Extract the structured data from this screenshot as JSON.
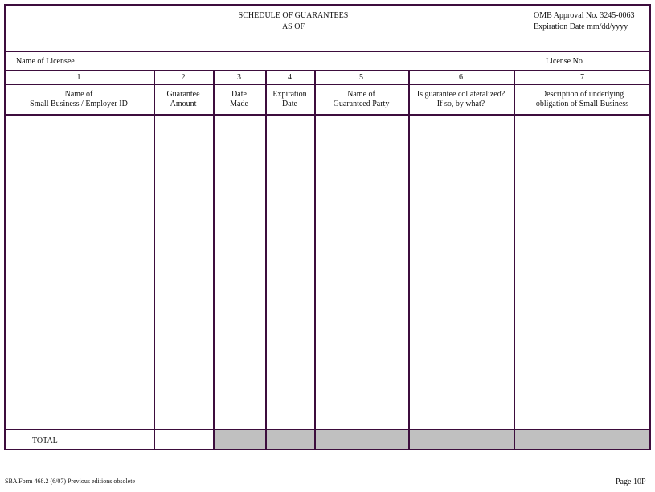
{
  "header": {
    "title": "SCHEDULE OF GUARANTEES",
    "subtitle": "AS OF",
    "omb": "OMB Approval No. 3245-0063",
    "expiration": "Expiration Date  mm/dd/yyyy"
  },
  "licensee": {
    "name_label": "Name of Licensee",
    "license_label": "License No"
  },
  "columns": [
    {
      "num": "1",
      "l1": "Name of",
      "l2": "Small Business / Employer ID"
    },
    {
      "num": "2",
      "l1": "Guarantee",
      "l2": "Amount"
    },
    {
      "num": "3",
      "l1": "Date",
      "l2": "Made"
    },
    {
      "num": "4",
      "l1": "Expiration",
      "l2": "Date"
    },
    {
      "num": "5",
      "l1": "Name of",
      "l2": "Guaranteed Party"
    },
    {
      "num": "6",
      "l1": "Is guarantee collateralized?",
      "l2": "If so, by what?"
    },
    {
      "num": "7",
      "l1": "Description of underlying",
      "l2": "obligation of Small Business"
    }
  ],
  "total_label": "TOTAL",
  "footer": {
    "form": "SBA Form 468.2 (6/07) Previous editions obsolete",
    "page": "Page 10P"
  },
  "colors": {
    "border": "#3d0d3d",
    "shaded": "#c0c0c0"
  }
}
